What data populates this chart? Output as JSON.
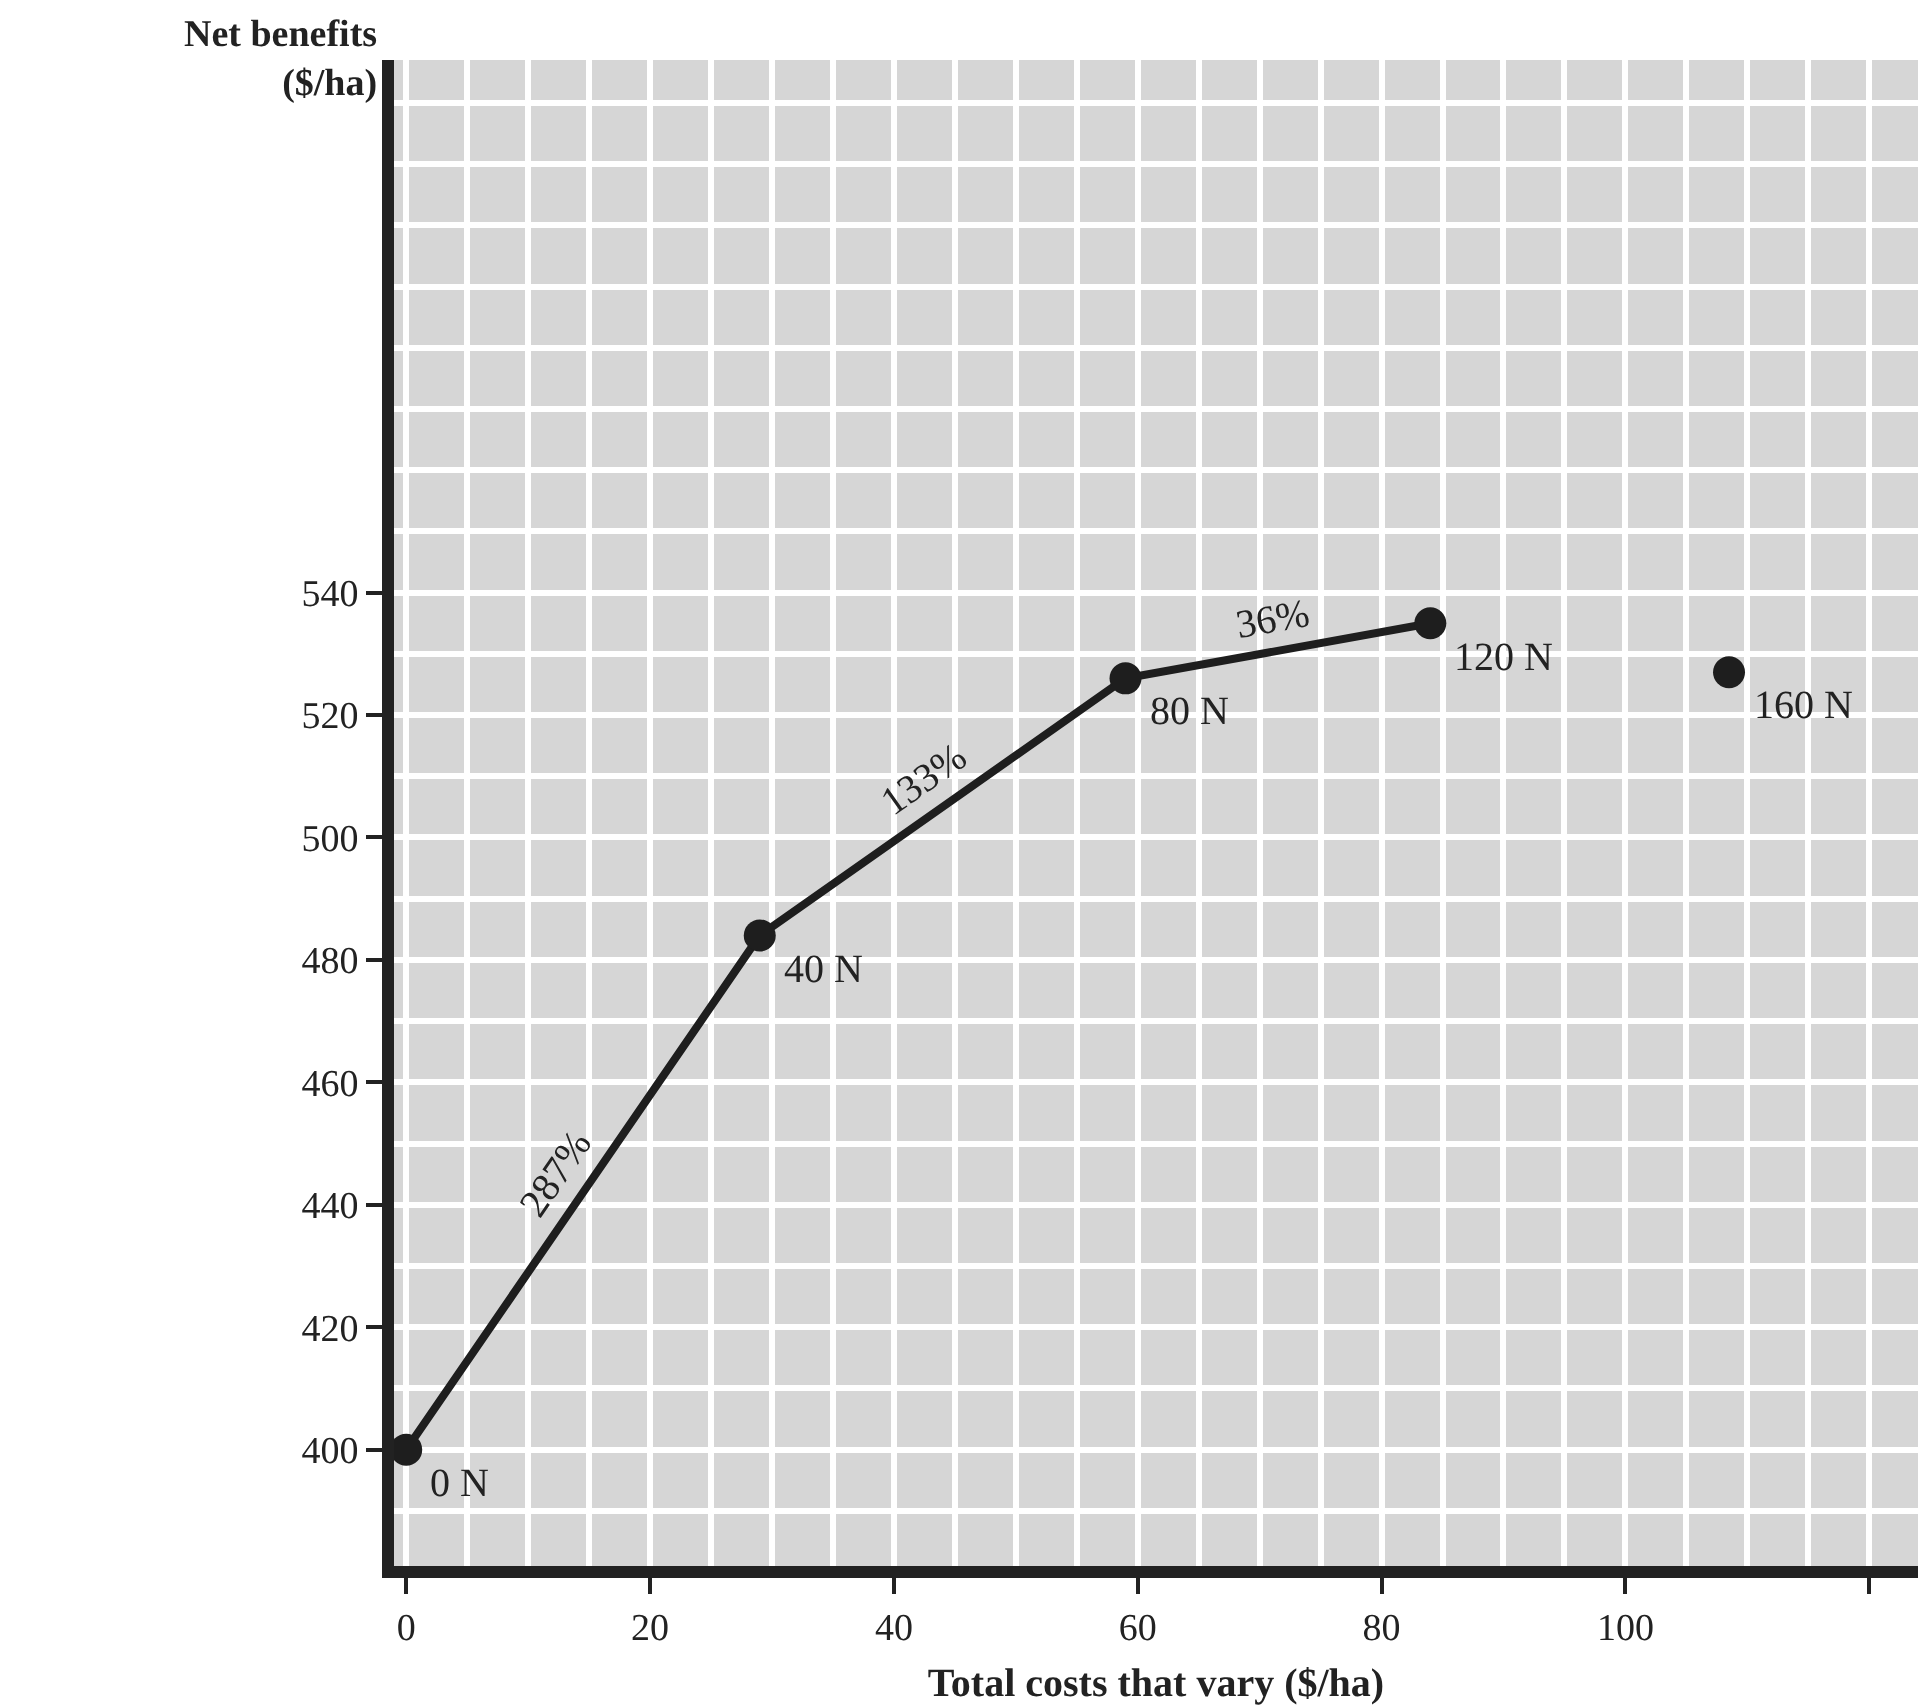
{
  "chart_data": {
    "type": "line",
    "xlabel": "Total costs that vary ($/ha)",
    "ylabel": "Net benefits ($/ha)",
    "series": [
      {
        "color": "#1e1e1e",
        "x": [
          0,
          29,
          59,
          84
        ],
        "values": [
          400,
          484,
          526,
          535
        ],
        "marker": "circle"
      },
      {
        "type": "scatter",
        "color": "#1e1e1e",
        "x": [
          108.5
        ],
        "values": [
          527
        ],
        "marker": "circle"
      }
    ],
    "xlim": [
      -1,
      124
    ],
    "xticks": [
      0,
      20,
      40,
      60,
      80,
      100,
      {
        "value": 120,
        "label": null
      }
    ],
    "ylim": [
      381,
      627
    ],
    "yticks": [
      400,
      420,
      440,
      460,
      480,
      500,
      520,
      540
    ],
    "grid": true,
    "annotations": [
      {
        "text": "0 N",
        "x": 0,
        "y": 400
      },
      {
        "text": "40 N",
        "x": 29,
        "y": 484
      },
      {
        "text": "80 N",
        "x": 59,
        "y": 526
      },
      {
        "text": "120 N",
        "x": 84,
        "y": 535
      },
      {
        "text": "160 N",
        "x": 108.5,
        "y": 527
      },
      {
        "text": "287%",
        "x": 14.5,
        "y": 442
      },
      {
        "text": "133%",
        "x": 44,
        "y": 505
      },
      {
        "text": "36%",
        "x": 71.5,
        "y": 530.5
      }
    ]
  }
}
